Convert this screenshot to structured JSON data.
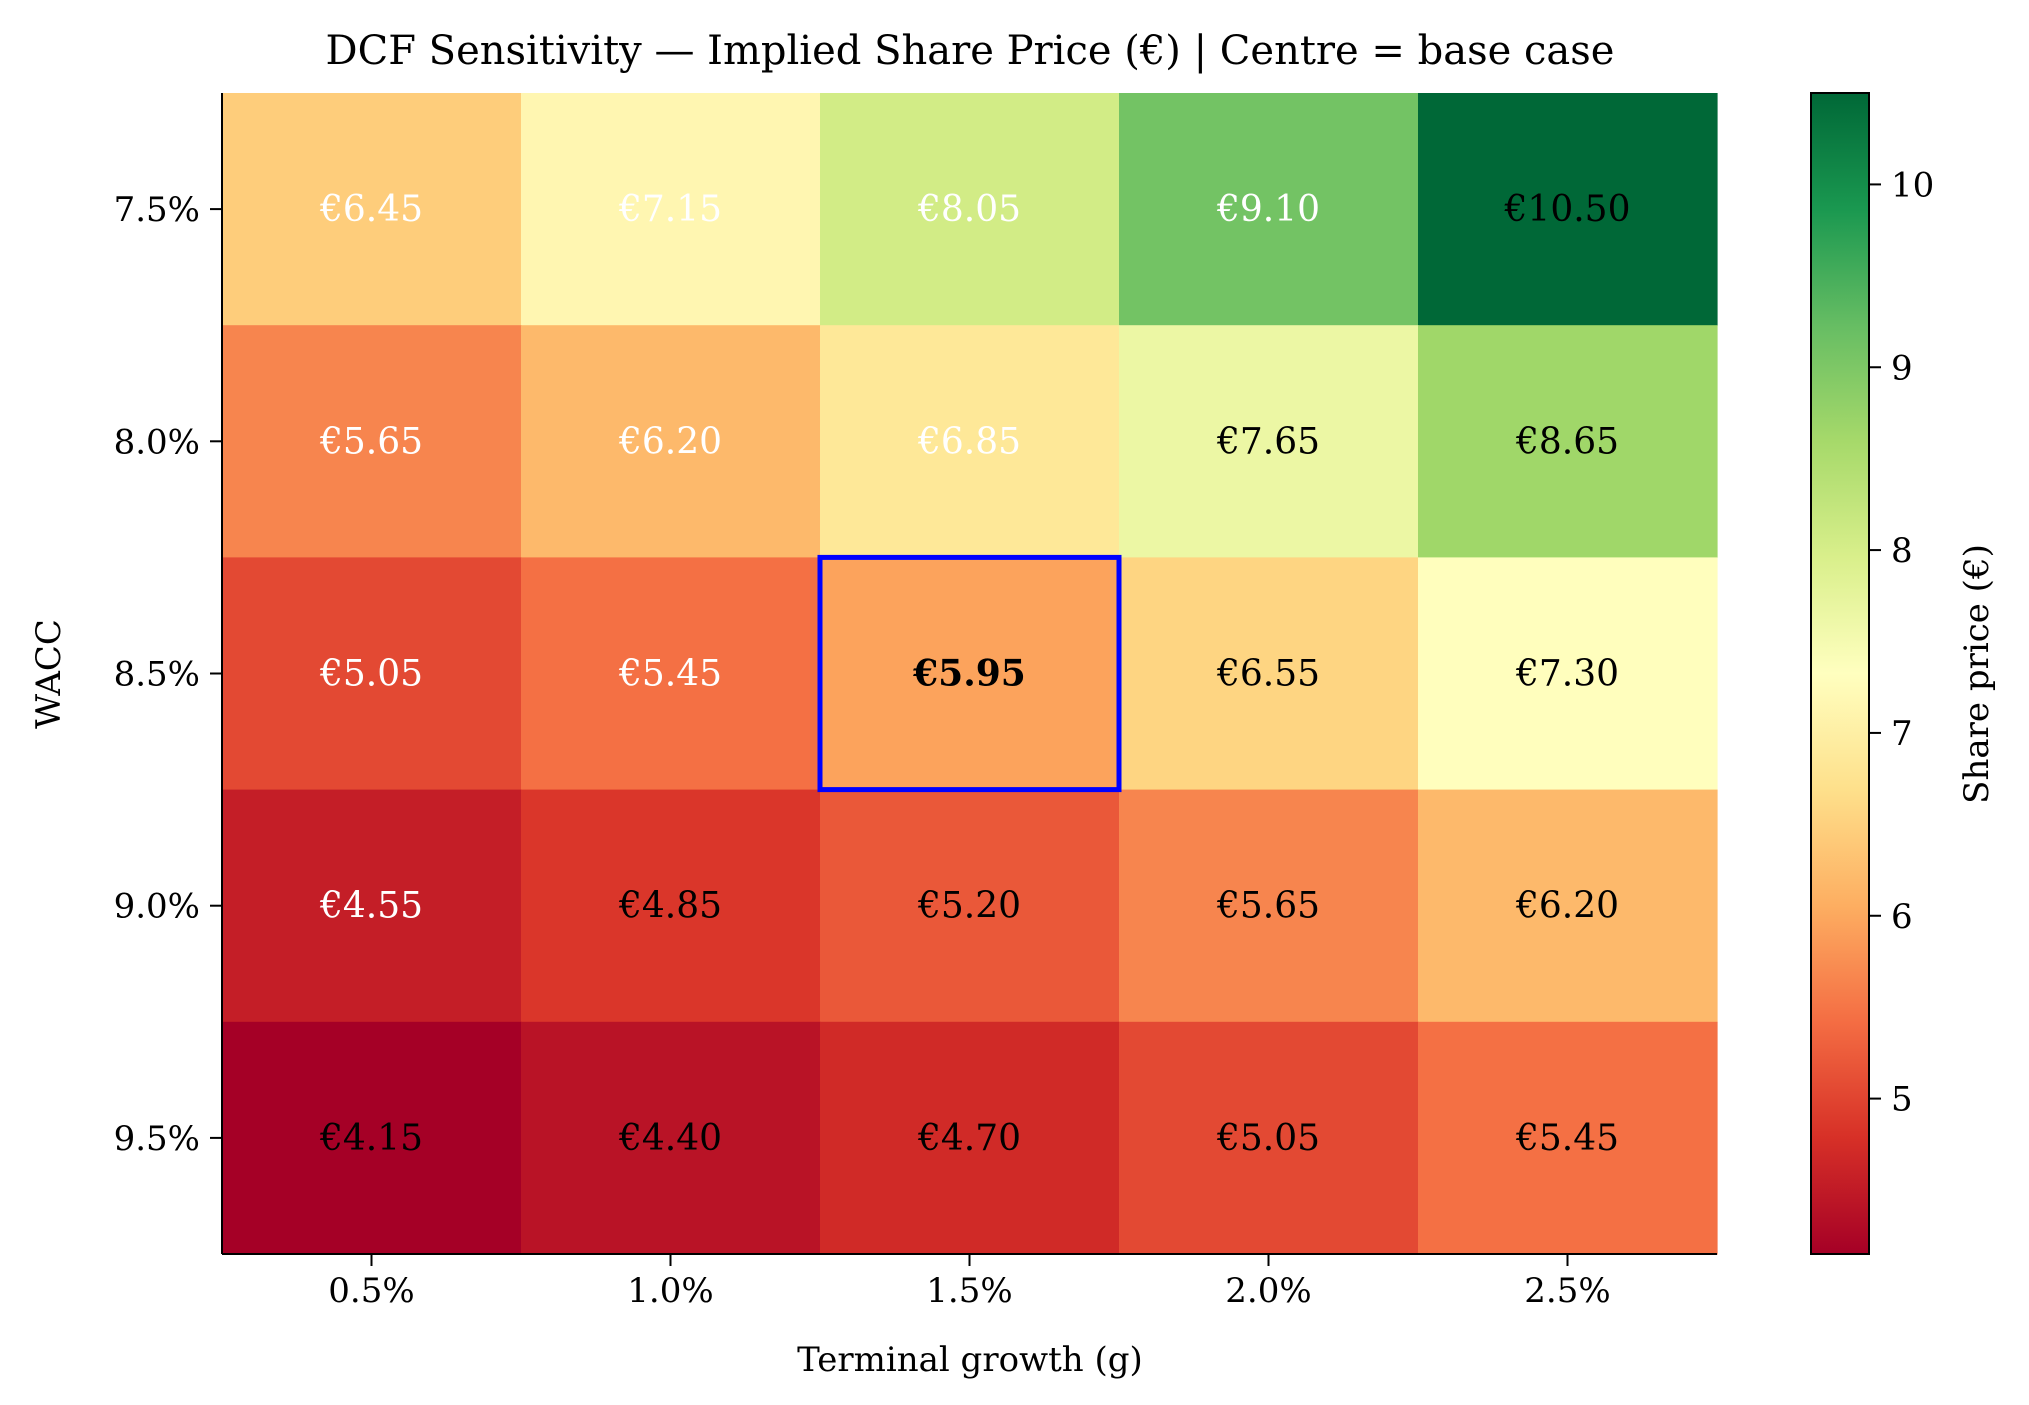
{
  "chart_data": {
    "type": "heatmap",
    "title": "DCF Sensitivity — Implied Share Price (€) | Centre = base case",
    "xlabel": "Terminal growth (g)",
    "ylabel": "WACC",
    "x_categories": [
      "0.5%",
      "1.0%",
      "1.5%",
      "2.0%",
      "2.5%"
    ],
    "y_categories": [
      "7.5%",
      "8.0%",
      "8.5%",
      "9.0%",
      "9.5%"
    ],
    "values": [
      [
        6.45,
        7.15,
        8.05,
        9.1,
        10.5
      ],
      [
        5.65,
        6.2,
        6.85,
        7.65,
        8.65
      ],
      [
        5.05,
        5.45,
        5.95,
        6.55,
        7.3
      ],
      [
        4.55,
        4.85,
        5.2,
        5.65,
        6.2
      ],
      [
        4.15,
        4.4,
        4.7,
        5.05,
        5.45
      ]
    ],
    "cell_labels": [
      [
        "€6.45",
        "€7.15",
        "€8.05",
        "€9.10",
        "€10.50"
      ],
      [
        "€5.65",
        "€6.20",
        "€6.85",
        "€7.65",
        "€8.65"
      ],
      [
        "€5.05",
        "€5.45",
        "€5.95",
        "€6.55",
        "€7.30"
      ],
      [
        "€4.55",
        "€4.85",
        "€5.20",
        "€5.65",
        "€6.20"
      ],
      [
        "€4.15",
        "€4.40",
        "€4.70",
        "€5.05",
        "€5.45"
      ]
    ],
    "label_colors": [
      [
        "#ffffff",
        "#ffffff",
        "#ffffff",
        "#ffffff",
        "#000000"
      ],
      [
        "#ffffff",
        "#ffffff",
        "#ffffff",
        "#000000",
        "#000000"
      ],
      [
        "#ffffff",
        "#ffffff",
        "#000000",
        "#000000",
        "#000000"
      ],
      [
        "#ffffff",
        "#000000",
        "#000000",
        "#000000",
        "#000000"
      ],
      [
        "#000000",
        "#000000",
        "#000000",
        "#000000",
        "#000000"
      ]
    ],
    "base_case": {
      "row": 2,
      "col": 2
    },
    "highlight_color": "#0000ff",
    "colormap": "RdYlGn",
    "colorbar": {
      "label": "Share price (€)",
      "range": [
        4.15,
        10.5
      ],
      "ticks": [
        5,
        6,
        7,
        8,
        9,
        10
      ],
      "tick_labels": [
        "5",
        "6",
        "7",
        "8",
        "9",
        "10"
      ]
    }
  }
}
